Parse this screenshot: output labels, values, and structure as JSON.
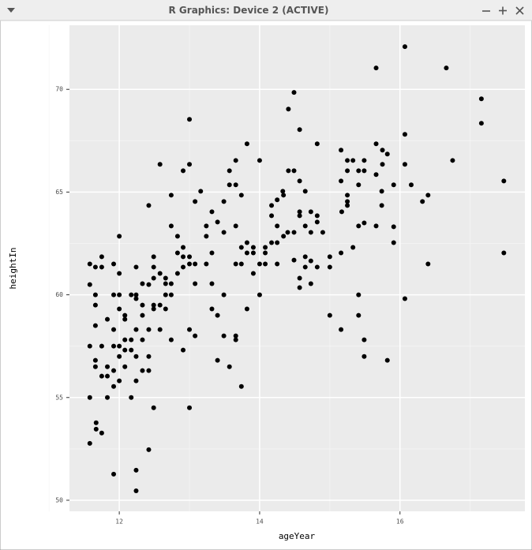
{
  "window_title": "R Graphics: Device 2 (ACTIVE)",
  "chart_data": {
    "type": "scatter",
    "xlabel": "ageYear",
    "ylabel": "heightIn",
    "color": "#000000",
    "grid": true,
    "xlim": [
      11.29,
      17.78
    ],
    "ylim": [
      49.46,
      73.12
    ],
    "xticks": [
      12,
      14,
      16
    ],
    "yticks": [
      50,
      55,
      60,
      65,
      70
    ],
    "xminor": [
      11,
      13,
      15,
      17
    ],
    "yminor": [
      52.5,
      57.5,
      62.5,
      67.5
    ],
    "x": [
      16.07,
      15.66,
      16.66,
      17.16,
      17.16,
      14.49,
      14.41,
      14.57,
      13.0,
      13.82,
      14.82,
      15.66,
      15.75,
      15.82,
      15.16,
      16.75,
      16.07,
      16.07,
      16.16,
      17.48,
      17.48,
      16.4,
      16.32,
      16.4,
      16.07,
      15.82,
      15.91,
      15.91,
      15.91,
      15.74,
      15.74,
      15.66,
      15.75,
      15.49,
      15.49,
      15.41,
      15.33,
      15.25,
      15.25,
      15.16,
      15.25,
      15.25,
      15.25,
      15.17,
      15.41,
      15.41,
      15.49,
      15.66,
      15.33,
      15.16,
      15.41,
      15.41,
      15.49,
      15.49,
      15.16,
      15.0,
      15.0,
      15.0,
      14.9,
      14.82,
      14.82,
      14.73,
      14.73,
      14.65,
      14.57,
      14.57,
      14.49,
      14.4,
      14.65,
      14.57,
      14.49,
      14.41,
      14.34,
      14.33,
      14.25,
      14.17,
      14.17,
      14.25,
      14.34,
      14.25,
      14.17,
      14.08,
      14.08,
      14.08,
      14.0,
      13.91,
      13.91,
      13.82,
      13.82,
      13.74,
      13.74,
      13.66,
      13.91,
      14.0,
      13.82,
      14.25,
      14.49,
      14.65,
      14.73,
      14.65,
      14.73,
      14.57,
      14.57,
      14.82,
      14.0,
      13.74,
      13.66,
      13.66,
      13.57,
      13.57,
      13.49,
      13.66,
      13.49,
      13.4,
      13.32,
      13.24,
      13.24,
      13.32,
      13.24,
      13.32,
      13.49,
      13.4,
      13.32,
      13.08,
      13.08,
      13.16,
      13.08,
      13.0,
      12.91,
      13.0,
      13.0,
      12.91,
      12.91,
      12.83,
      12.74,
      12.83,
      12.91,
      12.83,
      12.74,
      12.74,
      12.66,
      12.66,
      12.66,
      12.58,
      12.49,
      12.49,
      12.49,
      12.42,
      12.58,
      12.49,
      12.49,
      12.66,
      12.58,
      12.74,
      12.91,
      13.0,
      13.08,
      12.74,
      12.58,
      12.42,
      12.24,
      12.33,
      12.24,
      12.24,
      12.17,
      12.33,
      12.33,
      12.24,
      12.42,
      12.17,
      12.33,
      12.17,
      12.24,
      12.08,
      12.08,
      12.0,
      12.0,
      12.08,
      12.0,
      12.08,
      12.0,
      12.08,
      11.92,
      11.92,
      11.83,
      11.92,
      11.92,
      12.0,
      12.0,
      11.75,
      11.75,
      11.66,
      11.66,
      11.66,
      11.58,
      11.58,
      11.66,
      11.58,
      11.75,
      11.66,
      11.66,
      11.83,
      11.92,
      12.0,
      11.75,
      11.83,
      11.92,
      11.58,
      11.83,
      12.17,
      12.24,
      12.33,
      12.42,
      12.42,
      11.67,
      11.67,
      11.75,
      11.58,
      11.92,
      12.24,
      12.24,
      12.42,
      12.49,
      13.0,
      13.4,
      13.49,
      13.57,
      13.66,
      13.66,
      13.74
    ],
    "values": [
      72.08,
      71.04,
      71.04,
      69.54,
      68.35,
      69.85,
      69.04,
      68.04,
      68.54,
      67.35,
      67.35,
      67.35,
      67.04,
      66.85,
      67.04,
      66.54,
      67.81,
      66.35,
      65.35,
      65.54,
      62.04,
      64.85,
      64.54,
      61.5,
      59.81,
      56.81,
      65.35,
      63.31,
      62.54,
      65.04,
      64.35,
      65.85,
      66.35,
      66.54,
      66.04,
      66.04,
      66.54,
      66.54,
      66.04,
      65.54,
      64.85,
      64.54,
      64.35,
      64.04,
      65.35,
      63.35,
      63.5,
      63.35,
      62.31,
      62.04,
      60.0,
      59.0,
      57.81,
      57.0,
      58.31,
      59.0,
      61.85,
      61.35,
      63.04,
      63.85,
      63.54,
      64.04,
      63.04,
      63.35,
      64.04,
      63.85,
      63.04,
      63.04,
      65.04,
      65.54,
      66.04,
      66.04,
      64.85,
      65.04,
      64.62,
      64.35,
      63.85,
      63.35,
      62.85,
      62.54,
      62.54,
      62.31,
      62.04,
      61.5,
      61.5,
      62.31,
      62.04,
      62.54,
      62.04,
      62.31,
      61.5,
      61.5,
      61.04,
      60.0,
      59.31,
      61.5,
      61.69,
      61.85,
      61.65,
      61.35,
      60.54,
      60.81,
      60.35,
      61.35,
      66.54,
      64.85,
      65.35,
      66.54,
      66.04,
      65.35,
      64.54,
      63.35,
      63.04,
      63.54,
      64.04,
      63.35,
      62.85,
      62.04,
      61.5,
      60.54,
      60.0,
      59.0,
      59.31,
      60.54,
      61.5,
      65.04,
      64.54,
      66.35,
      66.04,
      61.85,
      61.5,
      61.85,
      62.31,
      62.85,
      63.35,
      62.04,
      61.35,
      61.04,
      60.54,
      60.0,
      60.81,
      60.54,
      60.0,
      61.04,
      61.85,
      61.35,
      60.81,
      60.5,
      59.5,
      59.5,
      59.31,
      59.31,
      58.31,
      57.81,
      57.31,
      58.31,
      58.0,
      64.85,
      66.35,
      64.35,
      61.35,
      60.54,
      60.0,
      59.81,
      60.0,
      59.5,
      59.0,
      58.31,
      58.31,
      57.81,
      57.81,
      57.31,
      57.0,
      59.0,
      58.81,
      60.0,
      59.31,
      57.81,
      57.5,
      57.31,
      57.0,
      56.5,
      57.5,
      58.31,
      58.81,
      60.0,
      61.5,
      61.04,
      62.85,
      61.85,
      61.35,
      61.35,
      60.0,
      59.5,
      61.5,
      60.5,
      58.5,
      57.5,
      57.5,
      56.81,
      56.5,
      56.5,
      56.31,
      55.81,
      56.04,
      56.04,
      55.54,
      55.0,
      55.0,
      55.0,
      55.81,
      56.31,
      56.31,
      57.0,
      53.77,
      53.46,
      53.27,
      52.77,
      51.27,
      51.46,
      50.46,
      52.46,
      54.5,
      54.5,
      56.81,
      58.0,
      56.5,
      58.0,
      57.81,
      55.54
    ]
  }
}
